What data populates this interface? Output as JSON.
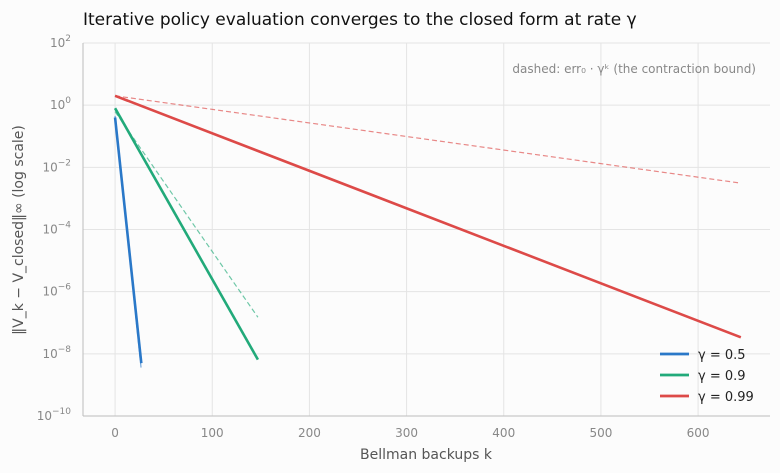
{
  "chart_data": {
    "type": "line",
    "title": "Iterative policy evaluation converges to the closed form at rate γ",
    "xlabel": "Bellman backups k",
    "ylabel": "‖V_k − V_closed‖∞ (log scale)",
    "xlim": [
      -33,
      674
    ],
    "ylim": [
      1e-10,
      100
    ],
    "yscale": "log",
    "grid": true,
    "legend_position": "lower-right",
    "xticks": [
      {
        "value": 0,
        "label": "0"
      },
      {
        "value": 100,
        "label": "100"
      },
      {
        "value": 200,
        "label": "200"
      },
      {
        "value": 300,
        "label": "300"
      },
      {
        "value": 400,
        "label": "400"
      },
      {
        "value": 500,
        "label": "500"
      },
      {
        "value": 600,
        "label": "600"
      }
    ],
    "yticks": [
      {
        "value": 1e-10,
        "base": "10",
        "exp": "−10"
      },
      {
        "value": 1e-08,
        "base": "10",
        "exp": "−8"
      },
      {
        "value": 1e-06,
        "base": "10",
        "exp": "−6"
      },
      {
        "value": 0.0001,
        "base": "10",
        "exp": "−4"
      },
      {
        "value": 0.01,
        "base": "10",
        "exp": "−2"
      },
      {
        "value": 1,
        "base": "10",
        "exp": "0"
      },
      {
        "value": 100,
        "base": "10",
        "exp": "2"
      }
    ],
    "annotation": "dashed: err₀ · γᵏ (the contraction bound)",
    "series": [
      {
        "name": "γ = 0.5",
        "color": "#2a78c8",
        "x": [
          0,
          27
        ],
        "y": [
          0.4,
          5e-09
        ]
      },
      {
        "name": "γ = 0.9",
        "color": "#22aa7a",
        "x": [
          0,
          147
        ],
        "y": [
          0.8,
          6.5e-09
        ]
      },
      {
        "name": "γ = 0.99",
        "color": "#dd4a48",
        "x": [
          0,
          644
        ],
        "y": [
          2.0,
          3.4e-08
        ]
      }
    ],
    "bounds": [
      {
        "color": "#2a78c8",
        "x": [
          0,
          27
        ],
        "y": [
          0.45,
          3e-09
        ]
      },
      {
        "color": "#22aa7a",
        "x": [
          0,
          147
        ],
        "y": [
          0.62,
          1.5e-07
        ]
      },
      {
        "color": "#dd4a48",
        "x": [
          0,
          644
        ],
        "y": [
          2.0,
          0.0031
        ]
      }
    ]
  }
}
